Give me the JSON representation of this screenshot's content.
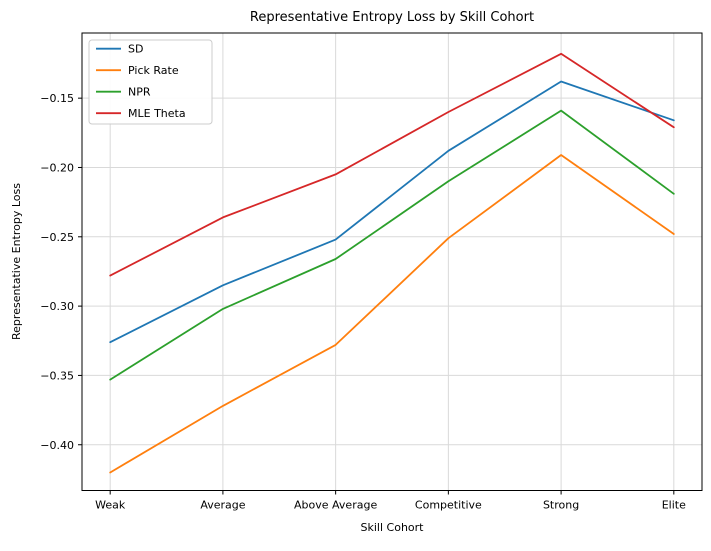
{
  "chart_data": {
    "type": "line",
    "title": "Representative Entropy Loss by Skill Cohort",
    "xlabel": "Skill Cohort",
    "ylabel": "Representative Entropy Loss",
    "categories": [
      "Weak",
      "Average",
      "Above Average",
      "Competitive",
      "Strong",
      "Elite"
    ],
    "series": [
      {
        "name": "SD",
        "color": "#1f77b4",
        "values": [
          -0.326,
          -0.285,
          -0.252,
          -0.188,
          -0.138,
          -0.166
        ]
      },
      {
        "name": "Pick Rate",
        "color": "#ff7f0e",
        "values": [
          -0.42,
          -0.372,
          -0.328,
          -0.251,
          -0.191,
          -0.248
        ]
      },
      {
        "name": "NPR",
        "color": "#2ca02c",
        "values": [
          -0.353,
          -0.302,
          -0.266,
          -0.21,
          -0.159,
          -0.219
        ]
      },
      {
        "name": "MLE Theta",
        "color": "#d62728",
        "values": [
          -0.278,
          -0.236,
          -0.205,
          -0.16,
          -0.118,
          -0.171
        ]
      }
    ],
    "yticks": [
      -0.15,
      -0.2,
      -0.25,
      -0.3,
      -0.35,
      -0.4
    ],
    "ytick_labels": [
      "−0.15",
      "−0.20",
      "−0.25",
      "−0.30",
      "−0.35",
      "−0.40"
    ],
    "ylim": [
      -0.433,
      -0.103
    ],
    "legend_position": "upper left",
    "grid": true,
    "grid_color": "#d9d9d9",
    "background_color": "#ffffff"
  }
}
